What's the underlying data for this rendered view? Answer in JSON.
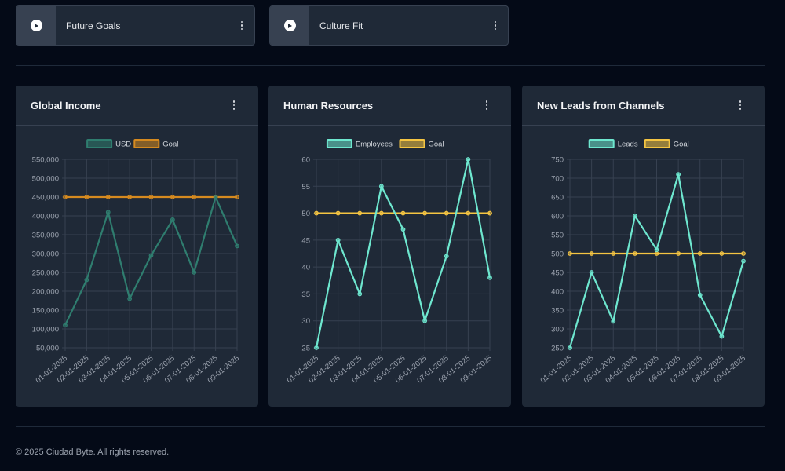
{
  "videos": [
    {
      "title": "Future Goals"
    },
    {
      "title": "Culture Fit"
    }
  ],
  "charts": [
    {
      "title": "Global Income",
      "chart_data": {
        "type": "line",
        "categories": [
          "01-01-2025",
          "02-01-2025",
          "03-01-2025",
          "04-01-2025",
          "05-01-2025",
          "06-01-2025",
          "07-01-2025",
          "08-01-2025",
          "09-01-2025"
        ],
        "series": [
          {
            "name": "USD",
            "color": "#2f7d6f",
            "values": [
              110000,
              230000,
              410000,
              180000,
              295000,
              390000,
              250000,
              450000,
              320000
            ]
          },
          {
            "name": "Goal",
            "color": "#d68a1f",
            "values": [
              450000,
              450000,
              450000,
              450000,
              450000,
              450000,
              450000,
              450000,
              450000
            ]
          }
        ],
        "yticks": [
          "50,000",
          "100,000",
          "150,000",
          "200,000",
          "250,000",
          "300,000",
          "350,000",
          "400,000",
          "450,000",
          "500,000",
          "550,000"
        ],
        "ylim": [
          50000,
          550000
        ]
      }
    },
    {
      "title": "Human Resources",
      "chart_data": {
        "type": "line",
        "categories": [
          "01-01-2025",
          "02-01-2025",
          "03-01-2025",
          "04-01-2025",
          "05-01-2025",
          "06-01-2025",
          "07-01-2025",
          "08-01-2025",
          "09-01-2025"
        ],
        "series": [
          {
            "name": "Employees",
            "color": "#6ee7cf",
            "values": [
              25,
              45,
              35,
              55,
              47,
              30,
              42,
              60,
              38
            ]
          },
          {
            "name": "Goal",
            "color": "#f5c542",
            "values": [
              50,
              50,
              50,
              50,
              50,
              50,
              50,
              50,
              50
            ]
          }
        ],
        "yticks": [
          "25",
          "30",
          "35",
          "40",
          "45",
          "50",
          "55",
          "60"
        ],
        "ylim": [
          25,
          60
        ]
      }
    },
    {
      "title": "New Leads from Channels",
      "chart_data": {
        "type": "line",
        "categories": [
          "01-01-2025",
          "02-01-2025",
          "03-01-2025",
          "04-01-2025",
          "05-01-2025",
          "06-01-2025",
          "07-01-2025",
          "08-01-2025",
          "09-01-2025"
        ],
        "series": [
          {
            "name": "Leads",
            "color": "#6ee7cf",
            "values": [
              250,
              450,
              320,
              600,
              510,
              710,
              390,
              280,
              480
            ]
          },
          {
            "name": "Goal",
            "color": "#f5c542",
            "values": [
              500,
              500,
              500,
              500,
              500,
              500,
              500,
              500,
              500
            ]
          }
        ],
        "yticks": [
          "250",
          "300",
          "350",
          "400",
          "450",
          "500",
          "550",
          "600",
          "650",
          "700",
          "750"
        ],
        "ylim": [
          250,
          750
        ]
      }
    }
  ],
  "footer": {
    "text": "© 2025 Ciudad Byte. All rights reserved."
  }
}
